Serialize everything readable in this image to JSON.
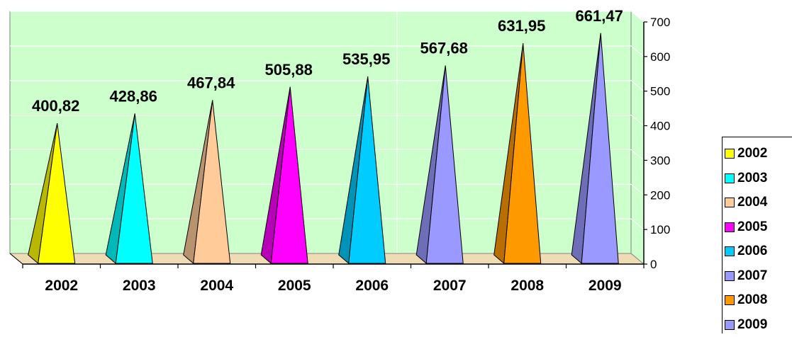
{
  "chart_data": {
    "type": "bar",
    "categories": [
      "2002",
      "2003",
      "2004",
      "2005",
      "2006",
      "2007",
      "2008",
      "2009"
    ],
    "values": [
      400.82,
      428.86,
      467.84,
      505.88,
      535.95,
      567.68,
      631.95,
      661.47
    ],
    "data_labels": [
      "400,82",
      "428,86",
      "467,84",
      "505,88",
      "535,95",
      "567,68",
      "631,95",
      "661,47"
    ],
    "colors": [
      "#ffff00",
      "#00ffff",
      "#ffcc99",
      "#ff00ff",
      "#00ccff",
      "#9999ff",
      "#ff9900",
      "#9999ff"
    ],
    "y_ticks": [
      "0",
      "100",
      "200",
      "300",
      "400",
      "500",
      "600",
      "700"
    ],
    "ylim": [
      0,
      700
    ],
    "legend": [
      "2002",
      "2003",
      "2004",
      "2005",
      "2006",
      "2007",
      "2008",
      "2009"
    ],
    "legend_position": "right",
    "y_axis_position": "right",
    "grid": true,
    "wall_color": "#ccffcc",
    "floor_color": "#f0dcb4",
    "shape": "3d-pyramid"
  }
}
